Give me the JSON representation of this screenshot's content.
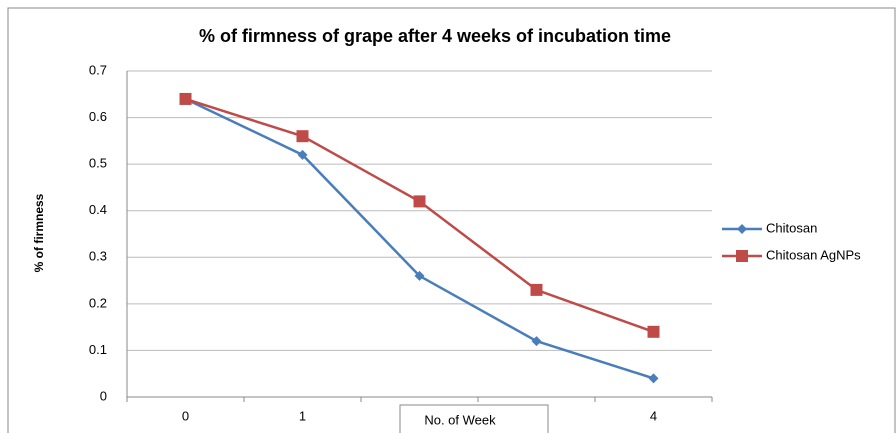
{
  "chart_data": {
    "type": "line",
    "title": "% of firmness of grape after 4 weeks of incubation time",
    "x_label": "No. of Week",
    "y_label": "% of firmness",
    "categories": [
      "0",
      "1",
      null,
      null,
      "4"
    ],
    "series": [
      {
        "name": "Chitosan",
        "color": "#4a7ebb",
        "marker": "diamond",
        "values": [
          0.64,
          0.52,
          0.26,
          0.12,
          0.04
        ]
      },
      {
        "name": "Chitosan AgNPs",
        "color": "#be4b48",
        "marker": "square",
        "values": [
          0.64,
          0.56,
          0.42,
          0.23,
          0.14
        ]
      }
    ],
    "ylim": [
      0,
      0.7
    ],
    "yticks": [
      0,
      0.1,
      0.2,
      0.3,
      0.4,
      0.5,
      0.6,
      0.7
    ],
    "grid": true,
    "legend": "right"
  }
}
